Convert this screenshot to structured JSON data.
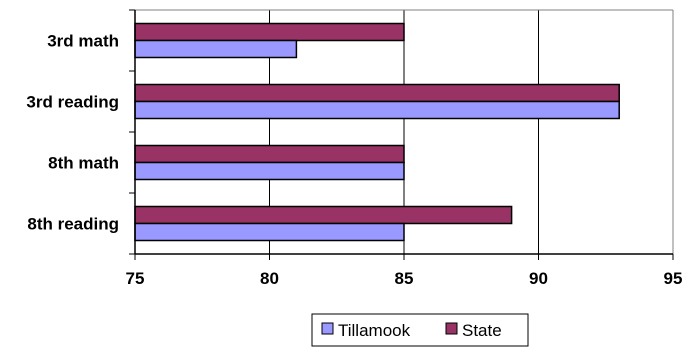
{
  "chart_data": {
    "type": "bar",
    "orientation": "horizontal",
    "categories": [
      "3rd math",
      "3rd reading",
      "8th math",
      "8th reading"
    ],
    "series": [
      {
        "name": "Tillamook",
        "color": "#9999ff",
        "values": [
          81,
          93,
          85,
          85
        ]
      },
      {
        "name": "State",
        "color": "#993366",
        "values": [
          85,
          93,
          85,
          89
        ]
      }
    ],
    "xlim": [
      75,
      95
    ],
    "xticks": [
      75,
      80,
      85,
      90,
      95
    ],
    "grid": "vertical",
    "legend_position": "bottom"
  }
}
